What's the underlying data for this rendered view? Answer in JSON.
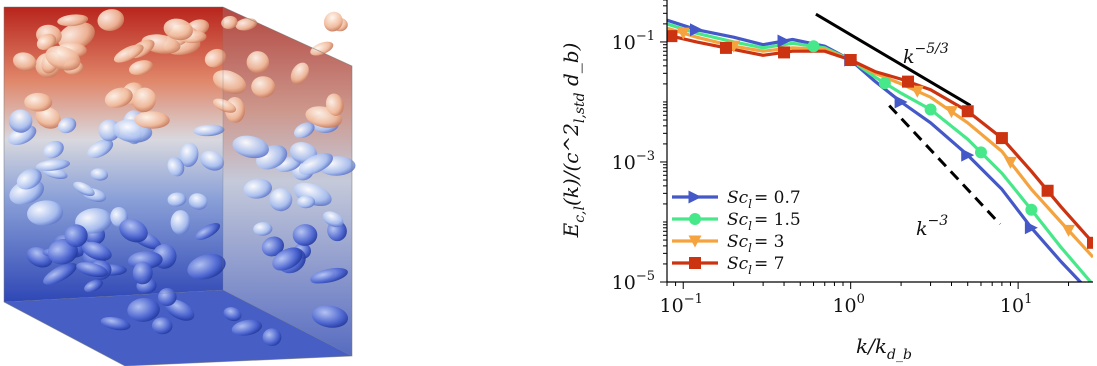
{
  "chart_data": {
    "type": "line",
    "xlabel": "k/k_{d_b}",
    "ylabel": "E_{c,l}(k)/(c^2_{l,std} d_b)",
    "xscale": "log",
    "yscale": "log",
    "xlim": [
      0.08,
      28
    ],
    "ylim": [
      1e-05,
      0.5
    ],
    "grid": false,
    "legend_position": "lower-left",
    "x_ticks": [
      {
        "value": 0.1,
        "base": "10",
        "exp": "−1"
      },
      {
        "value": 1,
        "base": "10",
        "exp": "0"
      },
      {
        "value": 10,
        "base": "10",
        "exp": "1"
      }
    ],
    "y_ticks": [
      {
        "value": 0.1,
        "base": "10",
        "exp": "−1"
      },
      {
        "value": 0.001,
        "base": "10",
        "exp": "−3"
      },
      {
        "value": 1e-05,
        "base": "10",
        "exp": "−5"
      }
    ],
    "series": [
      {
        "name": "Sc_l = 0.7",
        "legend_prefix": "Sc",
        "legend_sub": "l",
        "legend_value": "= 0.7",
        "color": "#4458c8",
        "marker": "triangle-right",
        "x": [
          0.08,
          0.12,
          0.2,
          0.3,
          0.45,
          0.7,
          1.0,
          1.4,
          2.0,
          3.0,
          5.0,
          8.0,
          12.0,
          18.0,
          28.0
        ],
        "y": [
          0.23,
          0.16,
          0.12,
          0.09,
          0.11,
          0.085,
          0.05,
          0.022,
          0.01,
          0.0045,
          0.0013,
          0.00035,
          8e-05,
          2.2e-05,
          6e-06
        ],
        "marker_x": [
          0.12,
          0.4,
          1.0,
          2.0,
          5.0,
          12.0
        ]
      },
      {
        "name": "Sc_l = 1.5",
        "legend_prefix": "Sc",
        "legend_sub": "l",
        "legend_value": "= 1.5",
        "color": "#47e889",
        "marker": "circle",
        "x": [
          0.08,
          0.12,
          0.2,
          0.3,
          0.45,
          0.7,
          1.0,
          1.4,
          2.0,
          3.0,
          5.0,
          8.0,
          12.0,
          18.0,
          28.0
        ],
        "y": [
          0.2,
          0.14,
          0.1,
          0.08,
          0.095,
          0.08,
          0.05,
          0.026,
          0.014,
          0.0075,
          0.0024,
          0.00065,
          0.00016,
          3.8e-05,
          9e-06
        ],
        "marker_x": [
          0.6,
          1.6,
          3.0,
          6.0,
          12.0
        ]
      },
      {
        "name": "Sc_l = 3",
        "legend_prefix": "Sc",
        "legend_sub": "l",
        "legend_value": "= 3",
        "color": "#f5a33e",
        "marker": "triangle-down",
        "x": [
          0.08,
          0.12,
          0.2,
          0.3,
          0.45,
          0.7,
          1.0,
          1.4,
          2.0,
          3.0,
          5.0,
          8.0,
          12.0,
          18.0,
          28.0
        ],
        "y": [
          0.17,
          0.12,
          0.085,
          0.07,
          0.08,
          0.075,
          0.05,
          0.03,
          0.02,
          0.012,
          0.0045,
          0.0015,
          0.00035,
          0.0001,
          2.6e-05
        ],
        "marker_x": [
          0.1,
          0.2,
          1.0,
          2.5,
          4.0,
          9.0,
          20.0
        ]
      },
      {
        "name": "Sc_l = 7",
        "legend_prefix": "Sc",
        "legend_sub": "l",
        "legend_value": "= 7",
        "color": "#cc3311",
        "marker": "square",
        "x": [
          0.08,
          0.12,
          0.2,
          0.3,
          0.45,
          0.7,
          1.0,
          1.4,
          2.0,
          3.0,
          5.0,
          8.0,
          12.0,
          18.0,
          28.0
        ],
        "y": [
          0.13,
          0.1,
          0.075,
          0.06,
          0.07,
          0.07,
          0.05,
          0.032,
          0.024,
          0.016,
          0.007,
          0.0025,
          0.0007,
          0.00018,
          4.5e-05
        ],
        "marker_x": [
          0.085,
          0.18,
          0.4,
          1.0,
          2.2,
          5.0,
          8.0,
          15.0,
          28.0
        ]
      }
    ],
    "reference_lines": [
      {
        "slope_base": "k",
        "slope_exp": "−5/3",
        "style": "solid",
        "x": [
          0.62,
          5.2
        ],
        "y": [
          0.29,
          0.0087
        ]
      },
      {
        "slope_base": "k",
        "slope_exp": "−3",
        "style": "dashed",
        "x": [
          1.7,
          7.8
        ],
        "y": [
          0.0087,
          9.2e-05
        ]
      }
    ]
  },
  "image": {
    "description_icon": "3d-simulation-cube-icon"
  }
}
